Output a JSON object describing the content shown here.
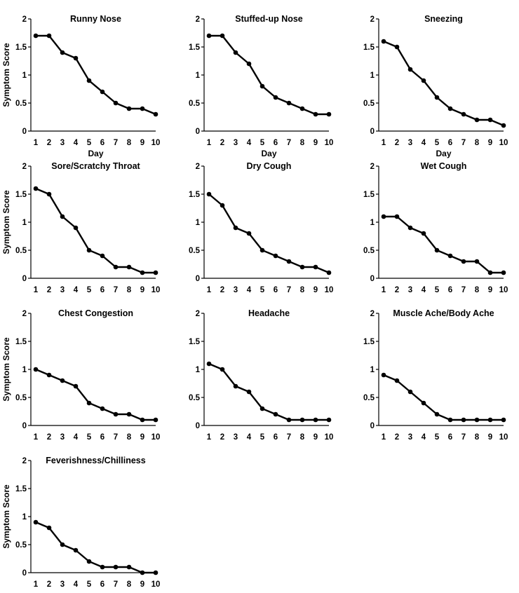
{
  "figure": {
    "line_color": "#000000",
    "background": "#ffffff"
  },
  "chart_data": [
    {
      "type": "line",
      "title": "Runny Nose",
      "xlabel": "Day",
      "ylabel": "Symptom Score",
      "x": [
        1,
        2,
        3,
        4,
        5,
        6,
        7,
        8,
        9,
        10
      ],
      "series": [
        {
          "values": [
            1.7,
            1.7,
            1.4,
            1.3,
            0.9,
            0.7,
            0.5,
            0.4,
            0.4,
            0.3
          ]
        }
      ],
      "xticks": [
        "1",
        "2",
        "3",
        "4",
        "5",
        "6",
        "7",
        "8",
        "9",
        "10"
      ],
      "yticks": [
        "0",
        "0.5",
        "1",
        "1.5",
        "2"
      ],
      "xlim": [
        1,
        10
      ],
      "ylim": [
        0,
        2
      ],
      "grid": false,
      "legend": "none"
    },
    {
      "type": "line",
      "title": "Stuffed-up Nose",
      "xlabel": "Day",
      "ylabel": "",
      "x": [
        1,
        2,
        3,
        4,
        5,
        6,
        7,
        8,
        9,
        10
      ],
      "series": [
        {
          "values": [
            1.7,
            1.7,
            1.4,
            1.2,
            0.8,
            0.6,
            0.5,
            0.4,
            0.3,
            0.3
          ]
        }
      ],
      "xticks": [
        "1",
        "2",
        "3",
        "4",
        "5",
        "6",
        "7",
        "8",
        "9",
        "10"
      ],
      "yticks": [
        "0",
        "0.5",
        "1",
        "1.5",
        "2"
      ],
      "xlim": [
        1,
        10
      ],
      "ylim": [
        0,
        2
      ],
      "grid": false,
      "legend": "none"
    },
    {
      "type": "line",
      "title": "Sneezing",
      "xlabel": "Day",
      "ylabel": "",
      "x": [
        1,
        2,
        3,
        4,
        5,
        6,
        7,
        8,
        9,
        10
      ],
      "series": [
        {
          "values": [
            1.6,
            1.5,
            1.1,
            0.9,
            0.6,
            0.4,
            0.3,
            0.2,
            0.2,
            0.1
          ]
        }
      ],
      "xticks": [
        "1",
        "2",
        "3",
        "4",
        "5",
        "6",
        "7",
        "8",
        "9",
        "10"
      ],
      "yticks": [
        "0",
        "0.5",
        "1",
        "1.5",
        "2"
      ],
      "xlim": [
        1,
        10
      ],
      "ylim": [
        0,
        2
      ],
      "grid": false,
      "legend": "none"
    },
    {
      "type": "line",
      "title": "Sore/Scratchy Throat",
      "xlabel": "",
      "ylabel": "Symptom Score",
      "x": [
        1,
        2,
        3,
        4,
        5,
        6,
        7,
        8,
        9,
        10
      ],
      "series": [
        {
          "values": [
            1.6,
            1.5,
            1.1,
            0.9,
            0.5,
            0.4,
            0.2,
            0.2,
            0.1,
            0.1
          ]
        }
      ],
      "xticks": [
        "1",
        "2",
        "3",
        "4",
        "5",
        "6",
        "7",
        "8",
        "9",
        "10"
      ],
      "yticks": [
        "0",
        "0.5",
        "1",
        "1.5",
        "2"
      ],
      "xlim": [
        1,
        10
      ],
      "ylim": [
        0,
        2
      ],
      "grid": false,
      "legend": "none"
    },
    {
      "type": "line",
      "title": "Dry Cough",
      "xlabel": "",
      "ylabel": "",
      "x": [
        1,
        2,
        3,
        4,
        5,
        6,
        7,
        8,
        9,
        10
      ],
      "series": [
        {
          "values": [
            1.5,
            1.3,
            0.9,
            0.8,
            0.5,
            0.4,
            0.3,
            0.2,
            0.2,
            0.1
          ]
        }
      ],
      "xticks": [
        "1",
        "2",
        "3",
        "4",
        "5",
        "6",
        "7",
        "8",
        "9",
        "10"
      ],
      "yticks": [
        "0",
        "0.5",
        "1",
        "1.5",
        "2"
      ],
      "xlim": [
        1,
        10
      ],
      "ylim": [
        0,
        2
      ],
      "grid": false,
      "legend": "none"
    },
    {
      "type": "line",
      "title": "Wet Cough",
      "xlabel": "",
      "ylabel": "",
      "x": [
        1,
        2,
        3,
        4,
        5,
        6,
        7,
        8,
        9,
        10
      ],
      "series": [
        {
          "values": [
            1.1,
            1.1,
            0.9,
            0.8,
            0.5,
            0.4,
            0.3,
            0.3,
            0.1,
            0.1
          ]
        }
      ],
      "xticks": [
        "1",
        "2",
        "3",
        "4",
        "5",
        "6",
        "7",
        "8",
        "9",
        "10"
      ],
      "yticks": [
        "0",
        "0.5",
        "1",
        "1.5",
        "2"
      ],
      "xlim": [
        1,
        10
      ],
      "ylim": [
        0,
        2
      ],
      "grid": false,
      "legend": "none"
    },
    {
      "type": "line",
      "title": "Chest Congestion",
      "xlabel": "",
      "ylabel": "Symptom Score",
      "x": [
        1,
        2,
        3,
        4,
        5,
        6,
        7,
        8,
        9,
        10
      ],
      "series": [
        {
          "values": [
            1.0,
            0.9,
            0.8,
            0.7,
            0.4,
            0.3,
            0.2,
            0.2,
            0.1,
            0.1
          ]
        }
      ],
      "xticks": [
        "1",
        "2",
        "3",
        "4",
        "5",
        "6",
        "7",
        "8",
        "9",
        "10"
      ],
      "yticks": [
        "0",
        "0.5",
        "1",
        "1.5",
        "2"
      ],
      "xlim": [
        1,
        10
      ],
      "ylim": [
        0,
        2
      ],
      "grid": false,
      "legend": "none"
    },
    {
      "type": "line",
      "title": "Headache",
      "xlabel": "",
      "ylabel": "",
      "x": [
        1,
        2,
        3,
        4,
        5,
        6,
        7,
        8,
        9,
        10
      ],
      "series": [
        {
          "values": [
            1.1,
            1.0,
            0.7,
            0.6,
            0.3,
            0.2,
            0.1,
            0.1,
            0.1,
            0.1
          ]
        }
      ],
      "xticks": [
        "1",
        "2",
        "3",
        "4",
        "5",
        "6",
        "7",
        "8",
        "9",
        "10"
      ],
      "yticks": [
        "0",
        "0.5",
        "1",
        "1.5",
        "2"
      ],
      "xlim": [
        1,
        10
      ],
      "ylim": [
        0,
        2
      ],
      "grid": false,
      "legend": "none"
    },
    {
      "type": "line",
      "title": "Muscle Ache/Body Ache",
      "xlabel": "",
      "ylabel": "",
      "x": [
        1,
        2,
        3,
        4,
        5,
        6,
        7,
        8,
        9,
        10
      ],
      "series": [
        {
          "values": [
            0.9,
            0.8,
            0.6,
            0.4,
            0.2,
            0.1,
            0.1,
            0.1,
            0.1,
            0.1
          ]
        }
      ],
      "xticks": [
        "1",
        "2",
        "3",
        "4",
        "5",
        "6",
        "7",
        "8",
        "9",
        "10"
      ],
      "yticks": [
        "0",
        "0.5",
        "1",
        "1.5",
        "2"
      ],
      "xlim": [
        1,
        10
      ],
      "ylim": [
        0,
        2
      ],
      "grid": false,
      "legend": "none"
    },
    {
      "type": "line",
      "title": "Feverishness/Chilliness",
      "xlabel": "",
      "ylabel": "Symptom Score",
      "x": [
        1,
        2,
        3,
        4,
        5,
        6,
        7,
        8,
        9,
        10
      ],
      "series": [
        {
          "values": [
            0.9,
            0.8,
            0.5,
            0.4,
            0.2,
            0.1,
            0.1,
            0.1,
            0.0,
            0.0
          ]
        }
      ],
      "xticks": [
        "1",
        "2",
        "3",
        "4",
        "5",
        "6",
        "7",
        "8",
        "9",
        "10"
      ],
      "yticks": [
        "0",
        "0.5",
        "1",
        "1.5",
        "2"
      ],
      "xlim": [
        1,
        10
      ],
      "ylim": [
        0,
        2
      ],
      "grid": false,
      "legend": "none"
    }
  ]
}
